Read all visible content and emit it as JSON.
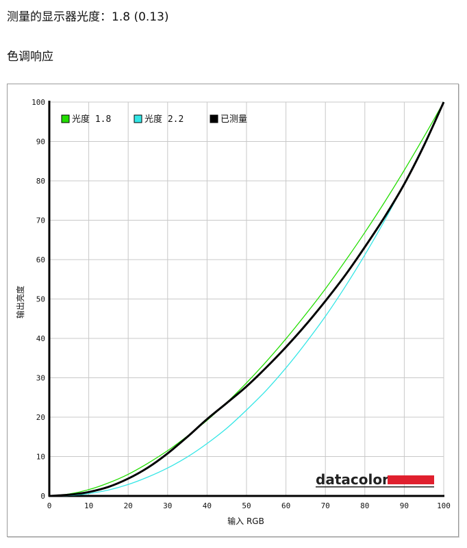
{
  "page": {
    "title": "测量的显示器光度：1.8 (0.13)",
    "subtitle": "色调响应"
  },
  "brand": {
    "text": "datacolor",
    "accent_color": "#e0202e"
  },
  "chart_data": {
    "type": "line",
    "xlabel": "输入 RGB",
    "ylabel": "输出亮度",
    "xlim": [
      0,
      100
    ],
    "ylim": [
      0,
      100
    ],
    "x_ticks": [
      0,
      10,
      20,
      30,
      40,
      50,
      60,
      70,
      80,
      90,
      100
    ],
    "y_ticks": [
      0,
      10,
      20,
      30,
      40,
      50,
      60,
      70,
      80,
      90,
      100
    ],
    "grid": true,
    "legend_position": "top-left",
    "x": [
      0,
      5,
      10,
      15,
      20,
      25,
      30,
      35,
      40,
      45,
      50,
      55,
      60,
      65,
      70,
      75,
      80,
      85,
      90,
      95,
      100
    ],
    "series": [
      {
        "name": "光度 1.8",
        "color": "#22dd00",
        "values": [
          0,
          0.5,
          1.6,
          3.3,
          5.5,
          8.3,
          11.5,
          15.2,
          19.2,
          23.7,
          28.7,
          34.1,
          39.9,
          46.1,
          52.6,
          59.6,
          66.9,
          74.6,
          82.7,
          91.2,
          100
        ]
      },
      {
        "name": "光度 2.2",
        "color": "#33e6e6",
        "values": [
          0,
          0.1,
          0.6,
          1.5,
          2.9,
          4.8,
          7.1,
          9.9,
          13.3,
          17.2,
          21.8,
          26.8,
          32.5,
          38.8,
          45.6,
          53.1,
          61.2,
          69.9,
          79.3,
          89.3,
          100
        ]
      },
      {
        "name": "已测量",
        "color": "#000000",
        "values": [
          0,
          0.3,
          1.0,
          2.3,
          4.4,
          7.2,
          10.8,
          15.0,
          19.5,
          23.6,
          27.8,
          32.6,
          37.8,
          43.4,
          49.5,
          56.0,
          63.2,
          70.8,
          79.2,
          89.0,
          100
        ]
      }
    ]
  }
}
